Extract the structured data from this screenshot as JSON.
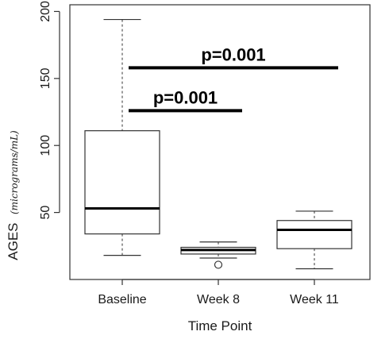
{
  "chart_data": {
    "type": "box",
    "xlabel": "Time Point",
    "ylabel": "AGES",
    "ylabel_unit": "(micrograms/mL)",
    "ylim": [
      0,
      205
    ],
    "yticks": [
      50,
      100,
      150,
      200
    ],
    "categories": [
      "Baseline",
      "Week 8",
      "Week 11"
    ],
    "boxes": [
      {
        "category": "Baseline",
        "whisker_low": 18,
        "q1": 34,
        "median": 53,
        "q3": 111,
        "whisker_high": 194,
        "outliers": []
      },
      {
        "category": "Week 8",
        "whisker_low": 16,
        "q1": 19,
        "median": 22,
        "q3": 24,
        "whisker_high": 28,
        "outliers": [
          11
        ]
      },
      {
        "category": "Week 11",
        "whisker_low": 8,
        "q1": 23,
        "median": 37,
        "q3": 44,
        "whisker_high": 51,
        "outliers": []
      }
    ],
    "annotations": [
      {
        "text": "p=0.001",
        "from": "Baseline",
        "to": "Week 8",
        "y": 126
      },
      {
        "text": "p=0.001",
        "from": "Baseline",
        "to": "Week 11",
        "y": 158
      }
    ],
    "grid": false
  }
}
